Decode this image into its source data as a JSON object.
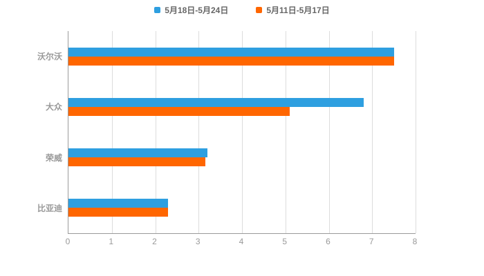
{
  "chart_data": {
    "type": "bar",
    "orientation": "horizontal",
    "title": "",
    "xlabel": "",
    "ylabel": "",
    "categories": [
      "沃尔沃",
      "大众",
      "荣威",
      "比亚迪"
    ],
    "series": [
      {
        "name": "5月18日-5月24日",
        "color": "#2E9FE0",
        "values": [
          7.5,
          6.8,
          3.2,
          2.3
        ]
      },
      {
        "name": "5月11日-5月17日",
        "color": "#FF6600",
        "values": [
          7.5,
          5.1,
          3.15,
          2.3
        ]
      }
    ],
    "xlim": [
      0,
      8
    ],
    "xticks": [
      0,
      1,
      2,
      3,
      4,
      5,
      6,
      7,
      8
    ],
    "grid": true,
    "legend_position": "top"
  },
  "colors": {
    "background": "#ffffff",
    "axis": "#9a9a9a",
    "gridline": "#dcdcdc",
    "label": "#999999",
    "legend_text": "#666666"
  }
}
